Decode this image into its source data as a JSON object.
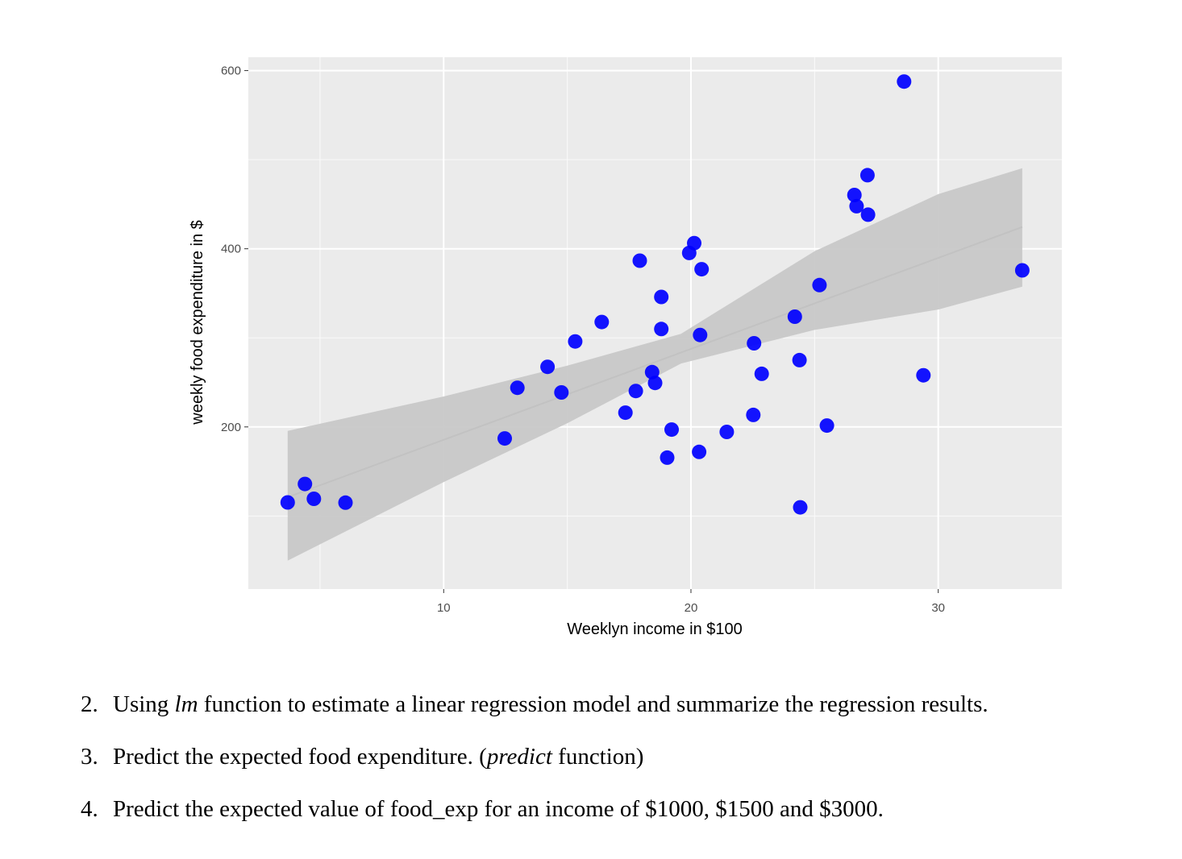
{
  "chart_data": {
    "type": "scatter",
    "xlabel": "Weeklyn income in $100",
    "ylabel": "weekly food expenditure in $",
    "xlim": [
      2.1,
      35.0
    ],
    "ylim": [
      18,
      615
    ],
    "x_ticks": [
      10,
      20,
      30
    ],
    "x_tick_labels": [
      "10",
      "20",
      "30"
    ],
    "y_ticks": [
      200,
      400,
      600
    ],
    "y_tick_labels": [
      "200",
      "400",
      "600"
    ],
    "x_minor": [
      5,
      15,
      25
    ],
    "y_minor": [
      100,
      300,
      500
    ],
    "grid": true,
    "panel_color": "#ebebeb",
    "point_color": "#0000ff",
    "band_color": "#c8c8c8",
    "fit_line_color": "#c2c2c2",
    "points": [
      [
        3.69,
        115.22
      ],
      [
        4.39,
        135.98
      ],
      [
        4.75,
        119.34
      ],
      [
        6.03,
        114.96
      ],
      [
        12.47,
        187.05
      ],
      [
        12.98,
        243.92
      ],
      [
        14.2,
        267.43
      ],
      [
        14.76,
        238.71
      ],
      [
        15.32,
        295.94
      ],
      [
        16.39,
        317.78
      ],
      [
        17.35,
        216.0
      ],
      [
        17.77,
        240.35
      ],
      [
        17.93,
        386.57
      ],
      [
        18.43,
        261.53
      ],
      [
        18.55,
        249.34
      ],
      [
        18.8,
        309.87
      ],
      [
        18.8,
        345.89
      ],
      [
        19.04,
        165.54
      ],
      [
        19.22,
        196.98
      ],
      [
        19.93,
        395.26
      ],
      [
        20.13,
        406.34
      ],
      [
        20.33,
        171.92
      ],
      [
        20.37,
        303.23
      ],
      [
        20.43,
        377.04
      ],
      [
        21.45,
        194.35
      ],
      [
        22.52,
        213.48
      ],
      [
        22.55,
        293.87
      ],
      [
        22.86,
        259.61
      ],
      [
        24.2,
        323.71
      ],
      [
        24.39,
        275.02
      ],
      [
        24.42,
        109.71
      ],
      [
        25.2,
        359.19
      ],
      [
        25.5,
        201.51
      ],
      [
        26.61,
        460.36
      ],
      [
        26.7,
        447.76
      ],
      [
        27.14,
        482.55
      ],
      [
        27.16,
        438.29
      ],
      [
        28.62,
        587.66
      ],
      [
        29.4,
        257.95
      ],
      [
        33.4,
        375.73
      ]
    ],
    "fit_line": {
      "intercept": 83.42,
      "slope": 10.21,
      "x_range": [
        3.69,
        33.4
      ]
    },
    "confidence_band": [
      [
        3.69,
        49.9,
        195.6
      ],
      [
        10.0,
        138.1,
        234.2
      ],
      [
        15.0,
        204.1,
        268.8
      ],
      [
        19.6,
        271.2,
        304.6
      ],
      [
        25.0,
        308.9,
        397.3
      ],
      [
        30.0,
        331.8,
        461.3
      ],
      [
        33.4,
        357.4,
        490.4
      ]
    ]
  },
  "questions": [
    {
      "num": "2.",
      "pre": "Using ",
      "em": "lm",
      "post": " function to estimate a linear regression model and summarize the regression results."
    },
    {
      "num": "3.",
      "pre": "Predict the expected food expenditure. (",
      "em": "predict",
      "post": " function)"
    },
    {
      "num": "4.",
      "pre": "Predict the expected value of food_exp for an income of $1000, $1500 and $3000.",
      "em": "",
      "post": ""
    }
  ]
}
